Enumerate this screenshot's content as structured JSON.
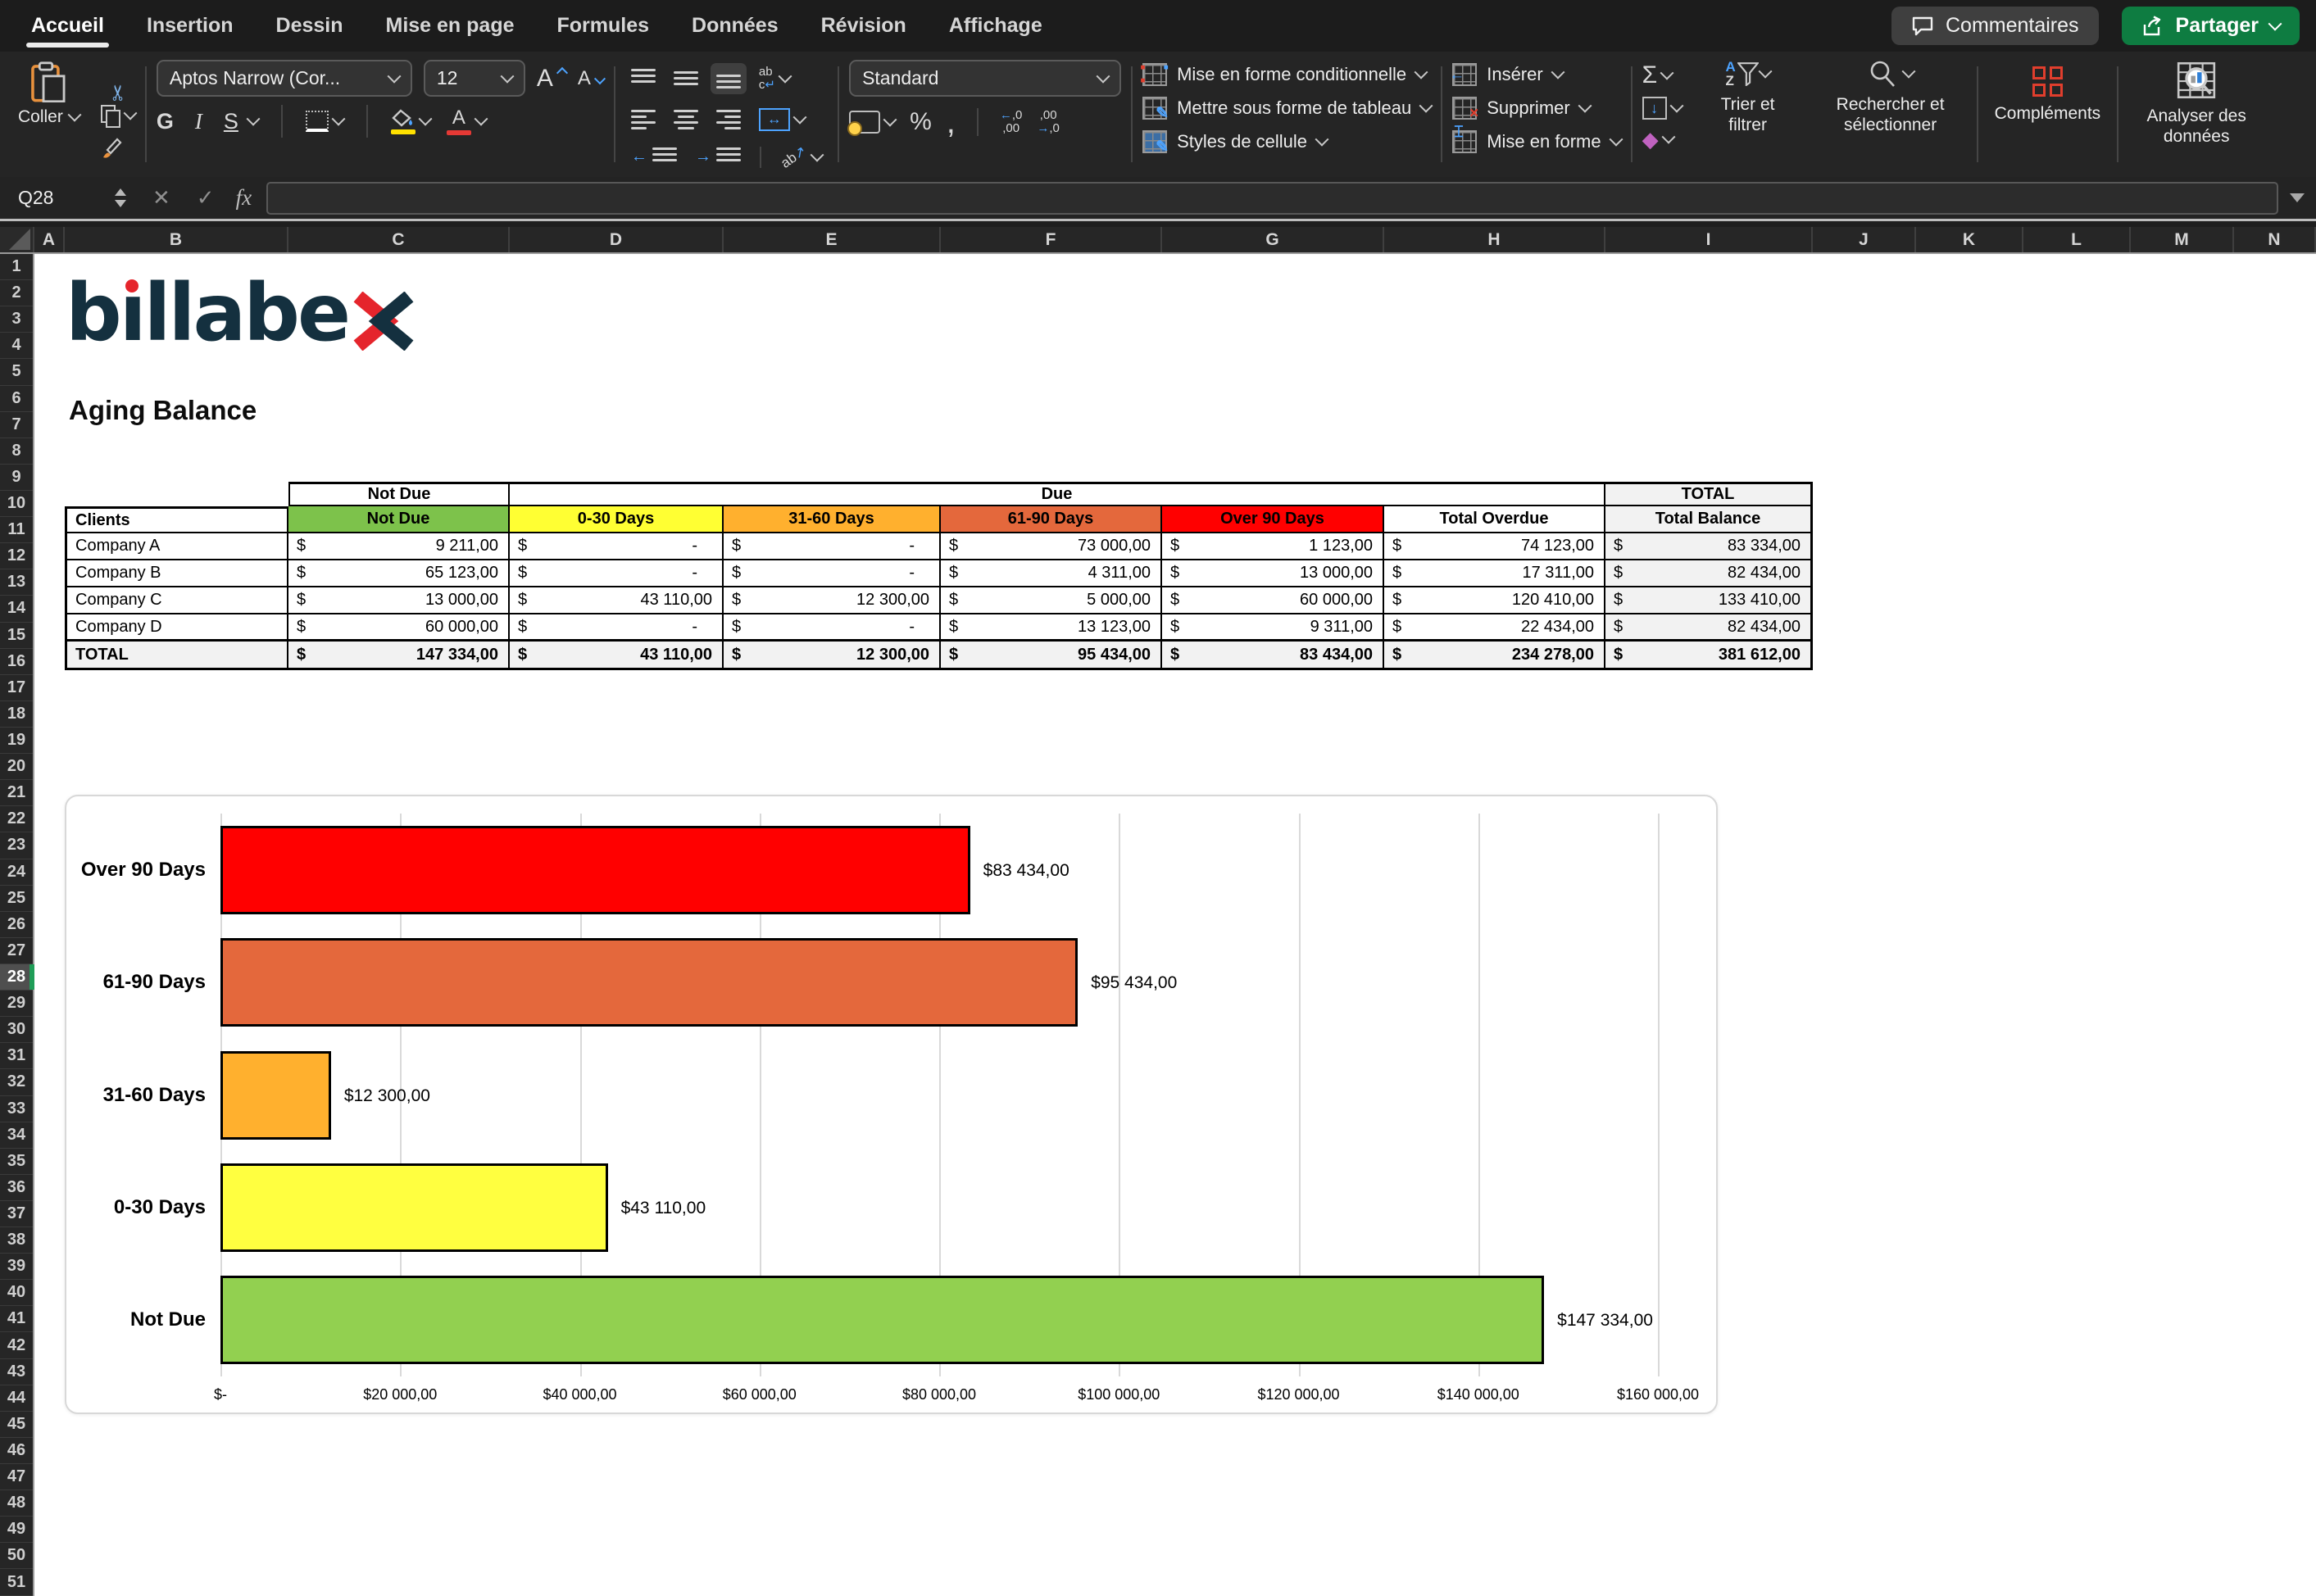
{
  "menu": {
    "tabs": [
      {
        "label": "Accueil",
        "active": true
      },
      {
        "label": "Insertion",
        "active": false
      },
      {
        "label": "Dessin",
        "active": false
      },
      {
        "label": "Mise en page",
        "active": false
      },
      {
        "label": "Formules",
        "active": false
      },
      {
        "label": "Données",
        "active": false
      },
      {
        "label": "Révision",
        "active": false
      },
      {
        "label": "Affichage",
        "active": false
      }
    ],
    "comments_label": "Commentaires",
    "share_label": "Partager"
  },
  "ribbon": {
    "paste_label": "Coller",
    "font_name": "Aptos Narrow (Cor...",
    "font_size": "12",
    "bold": "G",
    "italic": "I",
    "underline": "S",
    "number_format": "Standard",
    "styles": [
      "Mise en forme conditionnelle",
      "Mettre sous forme de tableau",
      "Styles de cellule"
    ],
    "cells": [
      "Insérer",
      "Supprimer",
      "Mise en forme"
    ],
    "sort_label": "Trier et filtrer",
    "find_label": "Rechercher et sélectionner",
    "addins_label": "Compléments",
    "analyze_label": "Analyser des données"
  },
  "formula_bar": {
    "name_box": "Q28",
    "fx": "fx",
    "value": ""
  },
  "sheet": {
    "columns": [
      "A",
      "B",
      "C",
      "D",
      "E",
      "F",
      "G",
      "H",
      "I",
      "J",
      "K",
      "L",
      "M",
      "N"
    ],
    "visible_rows": 51,
    "selected_row": 28,
    "logo_text": "billabex",
    "title": "Aging Balance",
    "table": {
      "currency": "$",
      "group_headers": [
        "Not Due",
        "Due",
        "TOTAL"
      ],
      "columns": [
        "Clients",
        "Not Due",
        "0-30 Days",
        "31-60 Days",
        "61-90 Days",
        "Over 90 Days",
        "Total Overdue",
        "Total Balance"
      ],
      "header_colors": [
        "#ffffff",
        "#7dc24b",
        "#ffff33",
        "#ffb02e",
        "#e4683c",
        "#ff0000",
        "#ffffff",
        "#f2f2f2"
      ],
      "rows": [
        [
          "Company A",
          "9 211,00",
          "-",
          "-",
          "73 000,00",
          "1 123,00",
          "74 123,00",
          "83 334,00"
        ],
        [
          "Company B",
          "65 123,00",
          "-",
          "-",
          "4 311,00",
          "13 000,00",
          "17 311,00",
          "82 434,00"
        ],
        [
          "Company C",
          "13 000,00",
          "43 110,00",
          "12 300,00",
          "5 000,00",
          "60 000,00",
          "120 410,00",
          "133 410,00"
        ],
        [
          "Company D",
          "60 000,00",
          "-",
          "-",
          "13 123,00",
          "9 311,00",
          "22 434,00",
          "82 434,00"
        ]
      ],
      "total_row": [
        "TOTAL",
        "147 334,00",
        "43 110,00",
        "12 300,00",
        "95 434,00",
        "83 434,00",
        "234 278,00",
        "381 612,00"
      ]
    }
  },
  "chart_data": {
    "type": "bar",
    "orientation": "horizontal",
    "title": "",
    "categories": [
      "Over 90 Days",
      "61-90 Days",
      "31-60 Days",
      "0-30 Days",
      "Not Due"
    ],
    "values": [
      83434,
      95434,
      12300,
      43110,
      147334
    ],
    "data_labels": [
      "$83 434,00",
      "$95 434,00",
      "$12 300,00",
      "$43 110,00",
      "$147 334,00"
    ],
    "bar_colors": [
      "#ff0000",
      "#e4683c",
      "#ffb02e",
      "#ffff40",
      "#92d050"
    ],
    "xlim": [
      0,
      160000
    ],
    "x_ticks": [
      "$-",
      "$20 000,00",
      "$40 000,00",
      "$60 000,00",
      "$80 000,00",
      "$100 000,00",
      "$120 000,00",
      "$140 000,00",
      "$160 000,00"
    ],
    "grid": true,
    "legend": false
  }
}
